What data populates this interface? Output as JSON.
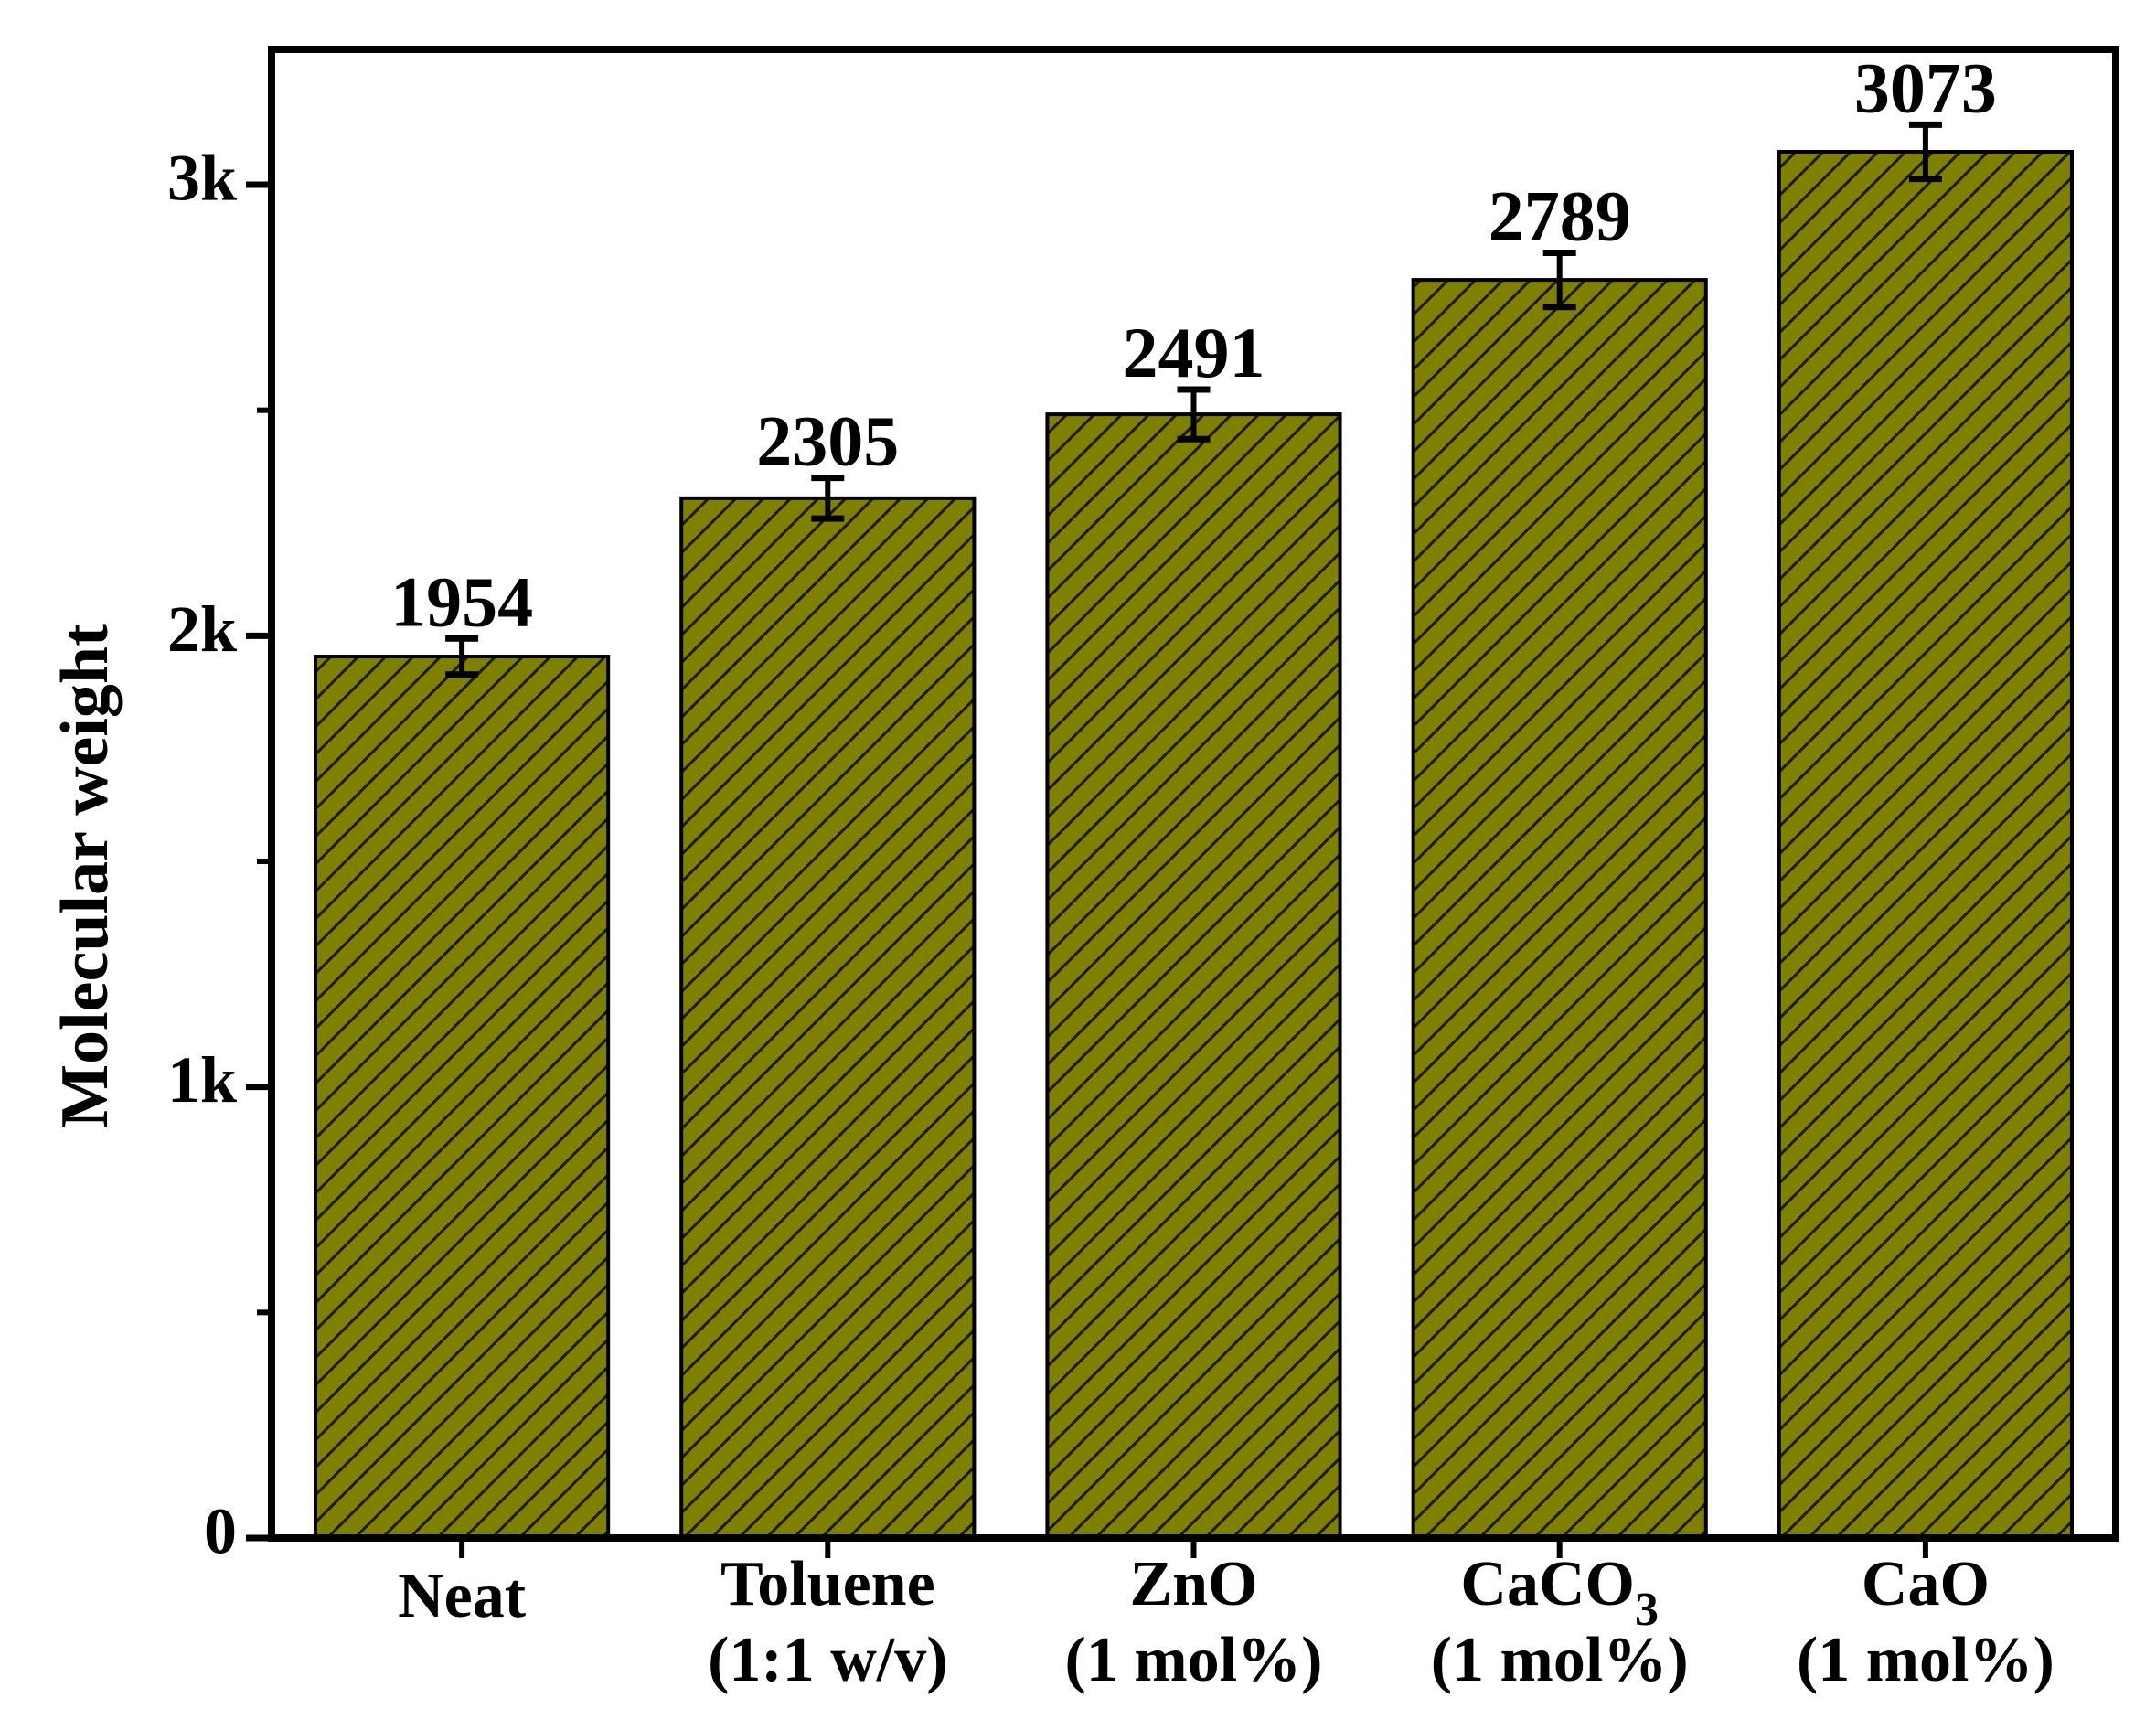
{
  "chart_data": {
    "type": "bar",
    "categories": [
      {
        "line1": "Neat",
        "line1_sub": "",
        "line2": ""
      },
      {
        "line1": "Toluene",
        "line1_sub": "",
        "line2": "(1:1 w/v)"
      },
      {
        "line1": "ZnO",
        "line1_sub": "",
        "line2": "(1 mol%)"
      },
      {
        "line1": "CaCO",
        "line1_sub": "3",
        "line2": "(1 mol%)"
      },
      {
        "line1": "CaO",
        "line1_sub": "",
        "line2": "(1 mol%)"
      }
    ],
    "values": [
      1954,
      2305,
      2491,
      2789,
      3073
    ],
    "errors": [
      40,
      45,
      55,
      60,
      60
    ],
    "data_labels": [
      "1954",
      "2305",
      "2491",
      "2789",
      "3073"
    ],
    "ylabel": "Molecular weight",
    "xlabel": "",
    "ylim": [
      0,
      3300
    ],
    "yticks": [
      {
        "value": 0,
        "label": "0"
      },
      {
        "value": 1000,
        "label": "1k"
      },
      {
        "value": 2000,
        "label": "2k"
      },
      {
        "value": 3000,
        "label": "3k"
      }
    ],
    "minor_yticks": [
      500,
      1500,
      2500
    ],
    "bar_color": "#808000",
    "hatch": "diagonal",
    "grid": false,
    "legend": "none"
  }
}
